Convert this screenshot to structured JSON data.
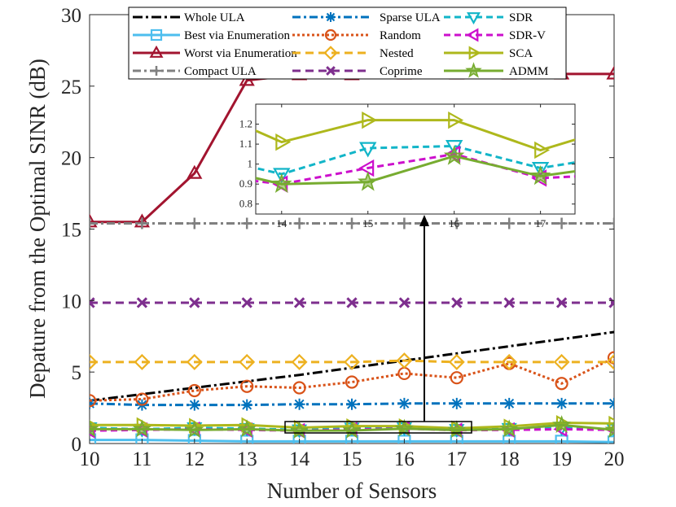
{
  "chart_data": {
    "type": "line",
    "xlabel": "Number of Sensors",
    "ylabel": "Depature from the Optimal SINR (dB)",
    "xlim": [
      10,
      20
    ],
    "ylim": [
      0,
      30
    ],
    "x": [
      10,
      11,
      12,
      13,
      14,
      15,
      16,
      17,
      18,
      19,
      20
    ],
    "xticks": [
      "10",
      "11",
      "12",
      "13",
      "14",
      "15",
      "16",
      "17",
      "18",
      "19",
      "20"
    ],
    "yticks": [
      "0",
      "5",
      "10",
      "15",
      "20",
      "25",
      "30"
    ],
    "series": [
      {
        "name": "Whole ULA",
        "color": "#000000",
        "dash": "12 4 3 4",
        "marker": "none",
        "width": 3,
        "values": [
          3.0,
          3.45,
          3.9,
          4.35,
          4.8,
          5.3,
          5.8,
          6.3,
          6.8,
          7.3,
          7.8
        ]
      },
      {
        "name": "Best via Enumeration",
        "color": "#4DBEEE",
        "dash": "",
        "marker": "square",
        "width": 3,
        "values": [
          0.25,
          0.25,
          0.2,
          0.15,
          0.15,
          0.15,
          0.15,
          0.15,
          0.15,
          0.15,
          0.1
        ]
      },
      {
        "name": "Worst via Enumeration",
        "color": "#A2142F",
        "dash": "",
        "marker": "triangle-up",
        "width": 3,
        "values": [
          15.5,
          15.5,
          18.9,
          25.4,
          25.8,
          25.8,
          25.85,
          25.85,
          25.85,
          25.85,
          25.85
        ]
      },
      {
        "name": "Compact ULA",
        "color": "#808080",
        "dash": "10 4 3 4",
        "marker": "plus",
        "width": 3,
        "values": [
          15.4,
          15.4,
          15.4,
          15.4,
          15.4,
          15.4,
          15.4,
          15.4,
          15.4,
          15.4,
          15.4
        ]
      },
      {
        "name": "Sparse ULA",
        "color": "#0072BD",
        "dash": "10 4 3 4",
        "marker": "asterisk",
        "width": 3,
        "values": [
          2.8,
          2.7,
          2.7,
          2.7,
          2.75,
          2.75,
          2.8,
          2.8,
          2.8,
          2.8,
          2.8
        ]
      },
      {
        "name": "Random",
        "color": "#D95319",
        "dash": "3 3",
        "marker": "circle",
        "width": 3,
        "values": [
          3.0,
          3.1,
          3.7,
          4.0,
          3.9,
          4.3,
          4.9,
          4.6,
          5.6,
          4.2,
          6.0
        ]
      },
      {
        "name": "Nested",
        "color": "#EDB120",
        "dash": "10 6",
        "marker": "diamond",
        "width": 3,
        "values": [
          5.7,
          5.7,
          5.7,
          5.7,
          5.7,
          5.7,
          5.8,
          5.7,
          5.7,
          5.7,
          5.7
        ]
      },
      {
        "name": "Coprime",
        "color": "#7E2F8E",
        "dash": "10 6",
        "marker": "x",
        "width": 3,
        "values": [
          9.85,
          9.85,
          9.85,
          9.85,
          9.85,
          9.85,
          9.85,
          9.85,
          9.85,
          9.85,
          9.85
        ]
      },
      {
        "name": "SDR",
        "color": "#12B5C8",
        "dash": "8 5",
        "marker": "triangle-down",
        "width": 3,
        "values": [
          1.1,
          1.0,
          1.1,
          1.05,
          0.95,
          1.08,
          1.09,
          0.98,
          1.05,
          1.1,
          1.0
        ]
      },
      {
        "name": "SDR-V",
        "color": "#CC10CC",
        "dash": "8 5",
        "marker": "triangle-left",
        "width": 3,
        "values": [
          0.9,
          0.95,
          1.0,
          0.95,
          0.9,
          0.98,
          1.05,
          0.93,
          0.95,
          1.0,
          0.95
        ]
      },
      {
        "name": "SCA",
        "color": "#AEB81C",
        "dash": "",
        "marker": "triangle-right",
        "width": 3,
        "values": [
          1.3,
          1.3,
          1.25,
          1.3,
          1.11,
          1.22,
          1.22,
          1.07,
          1.2,
          1.45,
          1.4
        ]
      },
      {
        "name": "ADMM",
        "color": "#77AC30",
        "dash": "",
        "marker": "star",
        "width": 3,
        "values": [
          1.0,
          1.0,
          0.95,
          1.0,
          0.9,
          0.91,
          1.04,
          0.94,
          1.0,
          1.3,
          0.95
        ]
      }
    ],
    "legend_position": "top",
    "inset": {
      "xlim": [
        13.7,
        17.4
      ],
      "ylim": [
        0.75,
        1.3
      ],
      "xticks": [
        "14",
        "15",
        "16",
        "17"
      ],
      "yticks": [
        "0.8",
        "0.9",
        "1",
        "1.1",
        "1.2"
      ]
    }
  }
}
